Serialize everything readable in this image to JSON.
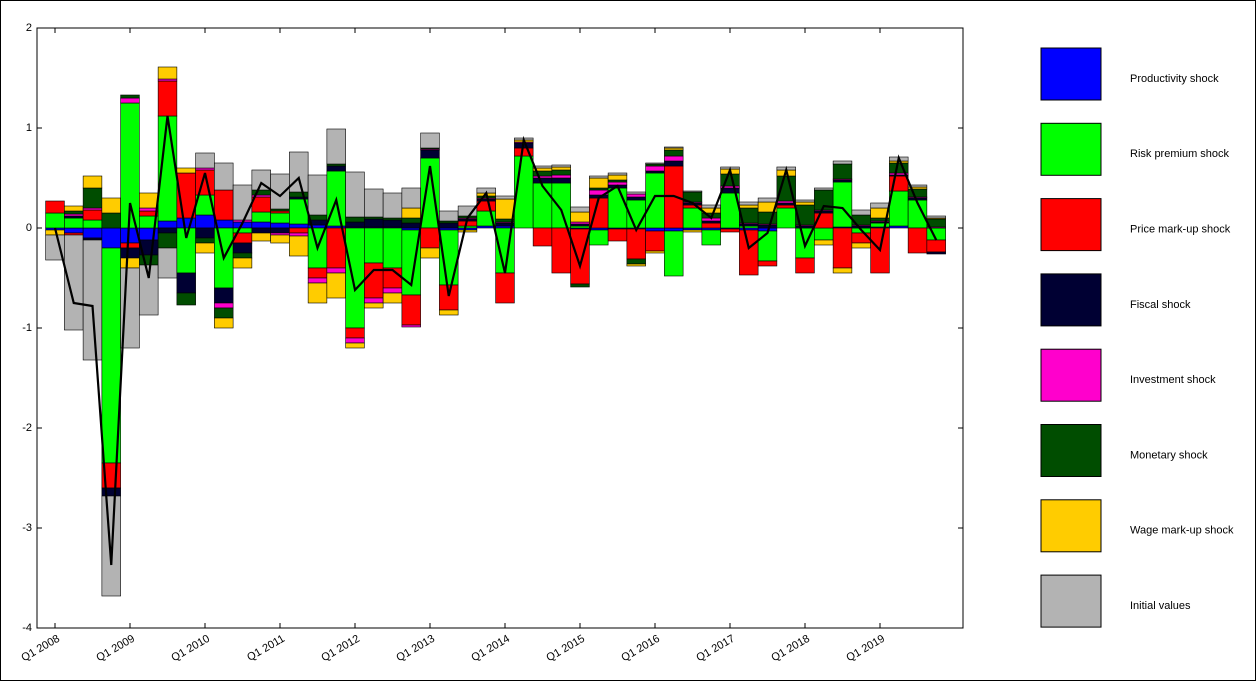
{
  "chart_data": {
    "type": "bar",
    "categories": [
      "Q1 2008",
      null,
      null,
      null,
      "Q1 2009",
      null,
      null,
      null,
      "Q1 2010",
      null,
      null,
      null,
      "Q1 2011",
      null,
      null,
      null,
      "Q1 2012",
      null,
      null,
      null,
      "Q1 2013",
      null,
      null,
      null,
      "Q1 2014",
      null,
      null,
      null,
      "Q1 2015",
      null,
      null,
      null,
      "Q1 2016",
      null,
      null,
      null,
      "Q1 2017",
      null,
      null,
      null,
      "Q1 2018",
      null,
      null,
      null,
      "Q1 2019",
      null,
      null,
      null
    ],
    "ylim": [
      -4,
      2
    ],
    "yticks": [
      -4,
      -3,
      -2,
      -1,
      0,
      1,
      2
    ],
    "stacked": true,
    "series": [
      {
        "name": "Productivity shock",
        "color": "#0000ff",
        "values": [
          -0.02,
          -0.05,
          -0.1,
          -0.2,
          -0.15,
          -0.12,
          0.07,
          0.1,
          0.13,
          0.08,
          0.06,
          0.06,
          0.05,
          0.04,
          0.03,
          0.02,
          0.01,
          0.01,
          0.01,
          -0.02,
          0,
          -0.02,
          -0.02,
          0.02,
          0.02,
          0,
          0,
          0,
          -0.01,
          -0.02,
          -0.01,
          -0.01,
          -0.03,
          -0.03,
          -0.02,
          -0.02,
          -0.01,
          -0.02,
          -0.03,
          0,
          0,
          0,
          0.01,
          0,
          0.01,
          0.02,
          0,
          0
        ]
      },
      {
        "name": "Risk premium shock",
        "color": "#00ff00",
        "values": [
          0.15,
          0.1,
          0.08,
          -2.15,
          1.25,
          0.12,
          1.05,
          -0.45,
          0.2,
          -0.6,
          -0.05,
          0.1,
          0.1,
          0.25,
          -0.4,
          0.55,
          -1.0,
          -0.35,
          -0.4,
          -0.65,
          0.7,
          -0.55,
          0.02,
          0.15,
          -0.45,
          0.72,
          0.45,
          0.45,
          0.02,
          -0.15,
          0.4,
          0.28,
          0.55,
          -0.45,
          0.2,
          -0.15,
          0.35,
          0.02,
          -0.3,
          0.2,
          -0.3,
          -0.12,
          0.45,
          -0.05,
          0.04,
          0.35,
          0.28,
          -0.12
        ]
      },
      {
        "name": "Price mark-up shock",
        "color": "#ff0000",
        "values": [
          0.12,
          -0.02,
          0.1,
          -0.25,
          -0.05,
          0.05,
          0.35,
          0.45,
          0.25,
          0.3,
          -0.1,
          0.15,
          0.02,
          -0.05,
          -0.1,
          -0.4,
          -0.1,
          -0.35,
          -0.2,
          -0.3,
          -0.2,
          -0.25,
          0.05,
          0.1,
          -0.3,
          0.08,
          -0.18,
          -0.45,
          -0.55,
          0.3,
          -0.12,
          -0.3,
          -0.2,
          0.62,
          0.03,
          0.05,
          -0.03,
          -0.45,
          -0.05,
          0.03,
          -0.15,
          0.15,
          -0.4,
          -0.1,
          -0.45,
          0.15,
          -0.25,
          -0.12
        ]
      },
      {
        "name": "Fiscal shock",
        "color": "#000033",
        "values": [
          0,
          0.02,
          -0.02,
          -0.08,
          -0.1,
          -0.15,
          -0.05,
          -0.2,
          -0.1,
          -0.15,
          -0.1,
          -0.05,
          -0.05,
          0.02,
          0.05,
          0.05,
          0.05,
          0.08,
          0.07,
          0.05,
          0.08,
          0.05,
          0.02,
          0.02,
          0.03,
          0.05,
          0.05,
          0.05,
          0.02,
          0.03,
          0.03,
          0.03,
          0.02,
          0.05,
          0.02,
          0.02,
          0.05,
          0.02,
          0.03,
          0.02,
          0.02,
          0.02,
          0.02,
          0.02,
          0.01,
          0.01,
          0.02,
          -0.02
        ]
      },
      {
        "name": "Investment shock",
        "color": "#ff00cc",
        "values": [
          0,
          0.02,
          0.02,
          0,
          0.05,
          0.03,
          0.02,
          0,
          0.02,
          -0.05,
          0.02,
          0.02,
          -0.02,
          -0.03,
          -0.05,
          -0.05,
          -0.05,
          -0.05,
          -0.05,
          -0.02,
          0.01,
          0,
          0.01,
          0.01,
          0.01,
          0.01,
          0.02,
          0.03,
          0.02,
          0.05,
          0.03,
          0.03,
          0.05,
          0.05,
          0.01,
          0.03,
          0.02,
          0.01,
          0.01,
          0.02,
          0.01,
          0.01,
          0.01,
          0.01,
          0.01,
          0.02,
          0.01,
          0.01
        ]
      },
      {
        "name": "Monetary shock",
        "color": "#004d00",
        "values": [
          0,
          0.03,
          0.2,
          0.15,
          0.03,
          -0.1,
          -0.15,
          -0.12,
          -0.05,
          -0.1,
          -0.05,
          0.05,
          0.02,
          0.05,
          0.05,
          0.02,
          0.05,
          0.02,
          0.02,
          0.05,
          0.01,
          0.02,
          0.02,
          0.02,
          0.03,
          0,
          0.05,
          0.05,
          -0.03,
          0.02,
          0.02,
          -0.05,
          0.02,
          0.06,
          0.1,
          0.05,
          0.12,
          0.15,
          0.12,
          0.25,
          0.2,
          0.2,
          0.15,
          0.1,
          0.03,
          0.1,
          0.08,
          0.08
        ]
      },
      {
        "name": "Wage mark-up shock",
        "color": "#ffcc00",
        "values": [
          -0.05,
          0.05,
          0.12,
          0.15,
          -0.1,
          0.15,
          0.12,
          0.05,
          -0.1,
          -0.1,
          -0.1,
          -0.08,
          -0.08,
          -0.2,
          -0.2,
          -0.25,
          -0.05,
          -0.05,
          -0.1,
          0.1,
          -0.1,
          -0.05,
          -0.02,
          0.03,
          0.2,
          0.02,
          0.03,
          0.03,
          0.1,
          0.1,
          0.05,
          -0.02,
          -0.02,
          0.02,
          -0.02,
          0.05,
          0.05,
          0.03,
          0.1,
          0.06,
          0.03,
          -0.05,
          -0.05,
          -0.05,
          0.1,
          0.02,
          0.02,
          0.01
        ]
      },
      {
        "name": "Initial values",
        "color": "#b3b3b3",
        "values": [
          -0.25,
          -0.95,
          -1.2,
          -1.0,
          -0.8,
          -0.5,
          -0.3,
          0,
          0.15,
          0.27,
          0.35,
          0.2,
          0.35,
          0.4,
          0.4,
          0.35,
          0.45,
          0.28,
          0.25,
          0.2,
          0.15,
          0.1,
          0.1,
          0.05,
          0.03,
          0.02,
          0.02,
          0.02,
          0.05,
          0.02,
          0.02,
          0.02,
          0.01,
          0.01,
          0.01,
          0.03,
          0.02,
          0.03,
          0.04,
          0.03,
          0.02,
          0.02,
          0.03,
          0.05,
          0.05,
          0.04,
          0.02,
          0.02
        ]
      }
    ],
    "line": {
      "color": "#000000",
      "values": [
        0.0,
        -0.75,
        -0.78,
        -3.37,
        0.25,
        -0.5,
        1.12,
        -0.1,
        0.55,
        -0.3,
        0.05,
        0.45,
        0.32,
        0.5,
        -0.2,
        0.28,
        -0.62,
        -0.42,
        -0.42,
        -0.57,
        0.62,
        -0.68,
        0.1,
        0.35,
        -0.45,
        0.88,
        0.42,
        0.18,
        -0.38,
        0.3,
        0.42,
        -0.02,
        0.32,
        0.32,
        0.25,
        0.1,
        0.58,
        -0.2,
        -0.05,
        0.58,
        -0.18,
        0.22,
        0.2,
        -0.02,
        -0.22,
        0.7,
        0.25,
        -0.12
      ]
    }
  }
}
